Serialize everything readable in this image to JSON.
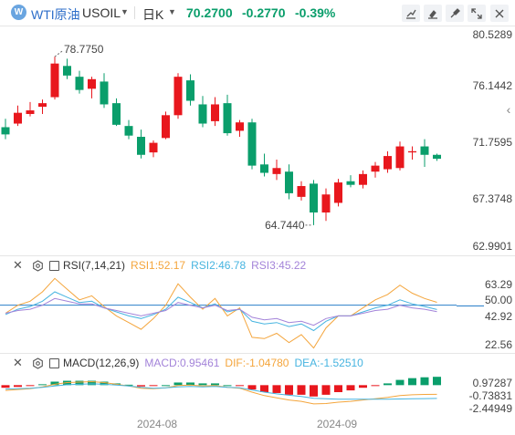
{
  "header": {
    "logo_text": "W",
    "symbol_name": "WTI原油",
    "symbol_code": "USOIL",
    "period": "日K",
    "last_price": "70.2700",
    "change": "-0.2770",
    "change_pct": "-0.39%",
    "color_down": "#0a9e6b",
    "color_up": "#e8171d",
    "tools": [
      "draw-line-icon",
      "draw-tool-icon",
      "brush-icon",
      "expand-icon",
      "close-icon"
    ]
  },
  "price_axis": [
    "80.5289",
    "76.1442",
    "71.7595",
    "67.3748",
    "62.9901"
  ],
  "annotations": {
    "high": "78.7750",
    "low": "64.7440"
  },
  "rsi": {
    "name": "RSI(7,14,21)",
    "rsi1": "RSI1:52.17",
    "rsi2": "RSI2:46.78",
    "rsi3": "RSI3:45.22",
    "rsi1_color": "#f4a53c",
    "rsi2_color": "#46b4e0",
    "rsi3_color": "#a383d9",
    "axis": [
      "63.29",
      "50.00",
      "42.92",
      "22.56"
    ]
  },
  "macd": {
    "name": "MACD(12,26,9)",
    "macd": "MACD:0.95461",
    "dif": "DIF:-1.04780",
    "dea": "DEA:-1.52510",
    "macd_color": "#a383d9",
    "dif_color": "#f4a53c",
    "dea_color": "#46b4e0",
    "axis": [
      "0.97287",
      "-0.73831",
      "-2.44949"
    ]
  },
  "dates": [
    "2024-08",
    "2024-09"
  ],
  "chart_data": [
    {
      "type": "candlestick",
      "title": "WTI原油 USOIL 日K",
      "ylim": [
        62.9901,
        80.5289
      ],
      "candles": [
        {
          "o": 72.9,
          "h": 73.6,
          "l": 71.9,
          "c": 72.3
        },
        {
          "o": 73.2,
          "h": 74.7,
          "l": 73.0,
          "c": 74.1
        },
        {
          "o": 74.0,
          "h": 75.0,
          "l": 73.8,
          "c": 74.3
        },
        {
          "o": 74.6,
          "h": 75.2,
          "l": 74.0,
          "c": 74.9
        },
        {
          "o": 75.4,
          "h": 78.775,
          "l": 75.2,
          "c": 78.2
        },
        {
          "o": 78.0,
          "h": 78.6,
          "l": 76.9,
          "c": 77.2
        },
        {
          "o": 77.1,
          "h": 77.6,
          "l": 75.7,
          "c": 76.0
        },
        {
          "o": 76.1,
          "h": 77.1,
          "l": 75.3,
          "c": 76.9
        },
        {
          "o": 76.7,
          "h": 77.4,
          "l": 74.5,
          "c": 74.8
        },
        {
          "o": 74.9,
          "h": 75.3,
          "l": 73.0,
          "c": 73.1
        },
        {
          "o": 73.0,
          "h": 73.5,
          "l": 71.9,
          "c": 72.2
        },
        {
          "o": 72.1,
          "h": 72.7,
          "l": 70.3,
          "c": 70.6
        },
        {
          "o": 70.8,
          "h": 71.8,
          "l": 70.4,
          "c": 71.6
        },
        {
          "o": 72.0,
          "h": 74.2,
          "l": 71.9,
          "c": 73.9
        },
        {
          "o": 73.9,
          "h": 77.4,
          "l": 73.6,
          "c": 77.1
        },
        {
          "o": 76.8,
          "h": 77.3,
          "l": 74.7,
          "c": 75.1
        },
        {
          "o": 74.8,
          "h": 75.5,
          "l": 72.9,
          "c": 73.2
        },
        {
          "o": 73.4,
          "h": 75.4,
          "l": 73.0,
          "c": 74.8
        },
        {
          "o": 74.9,
          "h": 75.6,
          "l": 72.2,
          "c": 72.4
        },
        {
          "o": 72.6,
          "h": 73.5,
          "l": 72.1,
          "c": 73.3
        },
        {
          "o": 73.3,
          "h": 73.6,
          "l": 69.4,
          "c": 69.7
        },
        {
          "o": 69.8,
          "h": 70.7,
          "l": 68.8,
          "c": 69.1
        },
        {
          "o": 69.0,
          "h": 70.2,
          "l": 68.5,
          "c": 69.5
        },
        {
          "o": 69.2,
          "h": 69.8,
          "l": 66.9,
          "c": 67.4
        },
        {
          "o": 67.1,
          "h": 68.4,
          "l": 66.8,
          "c": 68.0
        },
        {
          "o": 68.2,
          "h": 68.5,
          "l": 64.744,
          "c": 65.8
        },
        {
          "o": 65.8,
          "h": 67.8,
          "l": 65.1,
          "c": 67.3
        },
        {
          "o": 66.6,
          "h": 68.6,
          "l": 66.3,
          "c": 68.3
        },
        {
          "o": 68.4,
          "h": 68.9,
          "l": 67.9,
          "c": 68.1
        },
        {
          "o": 68.1,
          "h": 69.3,
          "l": 67.8,
          "c": 69.0
        },
        {
          "o": 69.2,
          "h": 70.0,
          "l": 68.7,
          "c": 69.7
        },
        {
          "o": 69.4,
          "h": 70.9,
          "l": 69.1,
          "c": 70.5
        },
        {
          "o": 69.5,
          "h": 71.7,
          "l": 69.3,
          "c": 71.3
        },
        {
          "o": 70.8,
          "h": 71.3,
          "l": 70.2,
          "c": 70.9
        },
        {
          "o": 71.3,
          "h": 71.9,
          "l": 69.6,
          "c": 70.6
        },
        {
          "o": 70.6,
          "h": 70.7,
          "l": 70.1,
          "c": 70.27
        }
      ]
    },
    {
      "type": "line",
      "title": "RSI(7,14,21)",
      "ylim": [
        15,
        75
      ],
      "series": [
        {
          "name": "RSI1",
          "values": [
            44,
            50,
            53,
            60,
            70,
            62,
            54,
            57,
            49,
            42,
            37,
            32,
            40,
            50,
            66,
            56,
            47,
            55,
            42,
            48,
            26,
            25,
            29,
            22,
            28,
            18,
            33,
            42,
            42,
            48,
            54,
            58,
            65,
            59,
            55,
            52.17
          ]
        },
        {
          "name": "RSI2",
          "values": [
            43,
            47,
            49,
            53,
            60,
            56,
            52,
            53,
            48,
            45,
            42,
            40,
            43,
            47,
            56,
            52,
            48,
            51,
            45,
            47,
            38,
            36,
            37,
            34,
            36,
            31,
            38,
            42,
            42,
            45,
            48,
            50,
            54,
            51,
            49,
            46.78
          ]
        },
        {
          "name": "RSI3",
          "values": [
            44,
            46,
            47,
            50,
            55,
            53,
            51,
            51,
            48,
            46,
            44,
            42,
            44,
            46,
            52,
            50,
            48,
            50,
            46,
            47,
            41,
            39,
            40,
            37,
            38,
            35,
            40,
            42,
            42,
            44,
            46,
            47,
            50,
            48,
            47,
            45.22
          ]
        }
      ]
    },
    {
      "type": "bar",
      "title": "MACD(12,26,9)",
      "ylim": [
        -3.2,
        1.6
      ],
      "series": [
        {
          "name": "MACD",
          "values": [
            -0.3,
            -0.2,
            -0.1,
            0.1,
            0.4,
            0.5,
            0.5,
            0.5,
            0.4,
            0.2,
            0.05,
            -0.15,
            -0.1,
            0.0,
            0.3,
            0.3,
            0.2,
            0.2,
            0.0,
            -0.1,
            -0.5,
            -0.8,
            -0.9,
            -1.1,
            -1.1,
            -1.3,
            -1.1,
            -0.8,
            -0.6,
            -0.3,
            -0.05,
            0.2,
            0.6,
            0.8,
            0.9,
            0.95461
          ]
        },
        {
          "name": "DIF",
          "values": [
            -0.6,
            -0.5,
            -0.4,
            -0.2,
            0.1,
            0.3,
            0.35,
            0.4,
            0.3,
            0.1,
            -0.1,
            -0.35,
            -0.4,
            -0.3,
            -0.05,
            0.0,
            -0.1,
            -0.05,
            -0.25,
            -0.35,
            -0.8,
            -1.2,
            -1.45,
            -1.7,
            -1.85,
            -2.15,
            -2.1,
            -1.95,
            -1.85,
            -1.7,
            -1.55,
            -1.4,
            -1.2,
            -1.1,
            -1.06,
            -1.0478
          ]
        },
        {
          "name": "DEA",
          "values": [
            -0.45,
            -0.4,
            -0.35,
            -0.25,
            -0.1,
            0.05,
            0.1,
            0.15,
            0.1,
            0.0,
            -0.1,
            -0.25,
            -0.35,
            -0.3,
            -0.2,
            -0.15,
            -0.2,
            -0.15,
            -0.25,
            -0.3,
            -0.55,
            -0.8,
            -1.0,
            -1.15,
            -1.3,
            -1.5,
            -1.55,
            -1.6,
            -1.6,
            -1.6,
            -1.6,
            -1.6,
            -1.58,
            -1.56,
            -1.54,
            -1.5251
          ]
        }
      ]
    }
  ]
}
